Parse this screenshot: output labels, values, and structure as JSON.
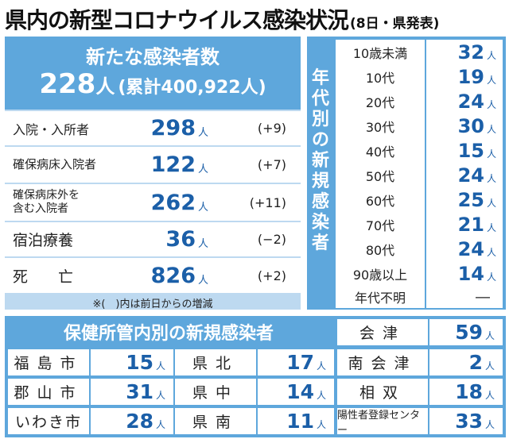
{
  "header": {
    "title": "県内の新型コロナウイルス感染状況",
    "subtitle": "(8日・県発表)"
  },
  "summary": {
    "new_cases_label": "新たな感染者数",
    "new_cases": "228",
    "unit": "人",
    "cumulative": "(累計400,922人)",
    "rows": [
      {
        "label": "入院・入所者",
        "value": "298",
        "unit": "人",
        "change": "(+9)"
      },
      {
        "label": "確保病床入院者",
        "value": "122",
        "unit": "人",
        "change": "(+7)"
      },
      {
        "label": "確保病床外を含む入院者",
        "label_line1": "確保病床外を",
        "label_line2": "含む入院者",
        "value": "262",
        "unit": "人",
        "change": "(+11)"
      },
      {
        "label": "宿泊療養",
        "value": "36",
        "unit": "人",
        "change": "(−2)"
      },
      {
        "label": "死　　亡",
        "value": "826",
        "unit": "人",
        "change": "(+2)"
      }
    ],
    "note": "※(　)内は前日からの増減"
  },
  "age": {
    "label": "年代別の新規感染者",
    "label_chars": [
      "年",
      "代",
      "別",
      "の",
      "新",
      "規",
      "感",
      "染",
      "者"
    ],
    "rows": [
      {
        "label": "10歳未満",
        "value": "32",
        "unit": "人"
      },
      {
        "label": "10代",
        "value": "19",
        "unit": "人"
      },
      {
        "label": "20代",
        "value": "24",
        "unit": "人"
      },
      {
        "label": "30代",
        "value": "30",
        "unit": "人"
      },
      {
        "label": "40代",
        "value": "15",
        "unit": "人"
      },
      {
        "label": "50代",
        "value": "24",
        "unit": "人"
      },
      {
        "label": "60代",
        "value": "25",
        "unit": "人"
      },
      {
        "label": "70代",
        "value": "21",
        "unit": "人"
      },
      {
        "label": "80代",
        "value": "24",
        "unit": "人"
      },
      {
        "label": "90歳以上",
        "value": "14",
        "unit": "人"
      },
      {
        "label": "年代不明",
        "value": "―",
        "unit": ""
      }
    ]
  },
  "health_centers": {
    "title": "保健所管内別の新規感染者",
    "rows": [
      {
        "label": "福島市",
        "value": "15",
        "unit": "人"
      },
      {
        "label": "郡山市",
        "value": "31",
        "unit": "人"
      },
      {
        "label": "いわき市",
        "value": "28",
        "unit": "人"
      },
      {
        "label": "県北",
        "value": "17",
        "unit": "人"
      },
      {
        "label": "県中",
        "value": "14",
        "unit": "人"
      },
      {
        "label": "県南",
        "value": "11",
        "unit": "人"
      },
      {
        "label": "会津",
        "value": "59",
        "unit": "人"
      },
      {
        "label": "南会津",
        "value": "2",
        "unit": "人"
      },
      {
        "label": "相双",
        "value": "18",
        "unit": "人"
      },
      {
        "label": "陽性者登録センター",
        "value": "33",
        "unit": "人"
      }
    ]
  }
}
